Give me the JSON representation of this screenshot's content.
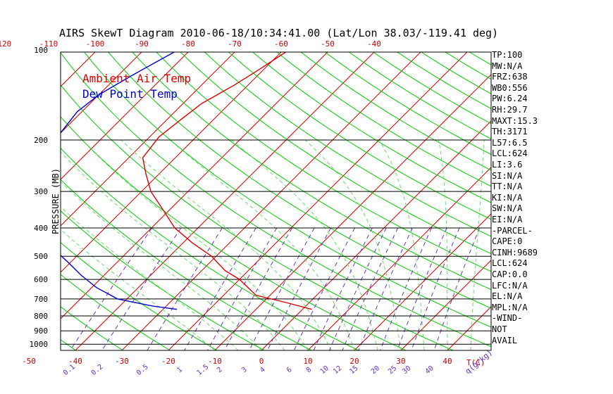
{
  "title": "AIRS SkewT Diagram 2010-06-18/10:34:41.00 (Lat/Lon 38.03/-119.41 deg)",
  "colors": {
    "background": "#ffffff",
    "frame": "#000000",
    "isotherm": "#cc0000",
    "dry_adiabat": "#00cc00",
    "moist_adiabat": "#66dd66",
    "mixing_ratio": "#6633cc",
    "temperature": "#dd0000",
    "dewpoint": "#0000cc",
    "axis_label": "#cc0000",
    "mixing_label": "#6633cc"
  },
  "params": [
    "TP:100",
    "MW:N/A",
    "FRZ:638",
    "WB0:556",
    "PW:6.24",
    "RH:29.7",
    "MAXT:15.3",
    "TH:3171",
    "L57:6.5",
    "LCL:624",
    "LI:3.6",
    "SI:N/A",
    "TT:N/A",
    "KI:N/A",
    "SW:N/A",
    "EI:N/A",
    "-PARCEL-",
    "CAPE:0",
    "CINH:9689",
    "LCL:624",
    "CAP:0.0",
    "LFC:N/A",
    "EL:N/A",
    "MPL:N/A",
    "-WIND-",
    "NOT",
    "AVAIL"
  ],
  "chart_data": {
    "type": "line",
    "title": "AIRS SkewT Diagram 2010-06-18/10:34:41.00 (Lat/Lon 38.03/-119.41 deg)",
    "ylabel": "PRESSURE (MB)",
    "xlabel": "T(C)",
    "mixing_ratio_unit": "q(g/kg)",
    "y_scale": "log",
    "ylim": [
      1050,
      100
    ],
    "pressure_ticks": [
      100,
      200,
      300,
      400,
      500,
      600,
      700,
      800,
      900,
      1000
    ],
    "pressure_gridlines": [
      200,
      300,
      400,
      500,
      600,
      700,
      800,
      900,
      1000
    ],
    "top_temp_ticks": [
      -120,
      -110,
      -100,
      -90,
      -80,
      -70,
      -60,
      -50,
      -40
    ],
    "bottom_temp_ticks": [
      -50,
      -40,
      -30,
      -20,
      -10,
      0,
      10,
      20,
      30,
      40
    ],
    "mixing_ratio_ticks": [
      "0.1",
      "0.2",
      "0.5",
      "1",
      "1.5",
      "2",
      "3",
      "4",
      "6",
      "8",
      "10",
      "12",
      "15",
      "20",
      "25",
      "30",
      "40"
    ],
    "legend": [
      {
        "label": "Ambient Air Temp",
        "color": "#dd0000"
      },
      {
        "label": "Dew Point Temp",
        "color": "#0000cc"
      }
    ],
    "series": [
      {
        "name": "Ambient Air Temp",
        "points": [
          {
            "p": 100,
            "t": -59
          },
          {
            "p": 115,
            "t": -61
          },
          {
            "p": 130,
            "t": -63
          },
          {
            "p": 150,
            "t": -66
          },
          {
            "p": 170,
            "t": -67
          },
          {
            "p": 195,
            "t": -68
          },
          {
            "p": 230,
            "t": -67
          },
          {
            "p": 260,
            "t": -63
          },
          {
            "p": 300,
            "t": -58
          },
          {
            "p": 350,
            "t": -51
          },
          {
            "p": 400,
            "t": -45
          },
          {
            "p": 450,
            "t": -38
          },
          {
            "p": 500,
            "t": -31
          },
          {
            "p": 560,
            "t": -25
          },
          {
            "p": 600,
            "t": -20
          },
          {
            "p": 680,
            "t": -13
          },
          {
            "p": 720,
            "t": -5
          },
          {
            "p": 760,
            "t": 2
          }
        ]
      },
      {
        "name": "Dew Point Temp",
        "points": [
          {
            "p": 100,
            "t": -83
          },
          {
            "p": 120,
            "t": -87
          },
          {
            "p": 140,
            "t": -90
          },
          {
            "p": 160,
            "t": -91
          },
          {
            "p": 190,
            "t": -90
          },
          {
            "p": 230,
            "t": -87
          },
          {
            "p": 270,
            "t": -85
          },
          {
            "p": 300,
            "t": -82
          },
          {
            "p": 350,
            "t": -78
          },
          {
            "p": 400,
            "t": -75
          },
          {
            "p": 460,
            "t": -68
          },
          {
            "p": 520,
            "t": -61
          },
          {
            "p": 580,
            "t": -55
          },
          {
            "p": 640,
            "t": -49
          },
          {
            "p": 700,
            "t": -42
          },
          {
            "p": 740,
            "t": -33
          },
          {
            "p": 760,
            "t": -27
          }
        ]
      }
    ]
  }
}
